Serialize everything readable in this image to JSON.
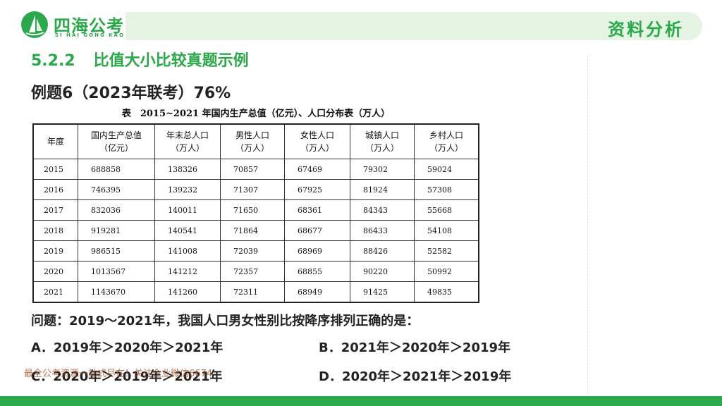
{
  "brand": {
    "name_cn": "四海公考",
    "name_en": "SI HAI GONG KAO"
  },
  "header": {
    "title": "资料分析"
  },
  "section": {
    "number": "5.2.2",
    "title": "比值大小比较真题示例"
  },
  "example": {
    "title": "例题6（2023年联考）76%"
  },
  "table": {
    "title": "表　2015~2021 年国内生产总值（亿元）、人口分布表（万人）",
    "headers": [
      {
        "line1": "年度",
        "line2": ""
      },
      {
        "line1": "国内生产总值",
        "line2": "（亿元）"
      },
      {
        "line1": "年末总人口",
        "line2": "（万人）"
      },
      {
        "line1": "男性人口",
        "line2": "（万人）"
      },
      {
        "line1": "女性人口",
        "line2": "（万人）"
      },
      {
        "line1": "城镇人口",
        "line2": "（万人）"
      },
      {
        "line1": "乡村人口",
        "line2": "（万人）"
      }
    ],
    "rows": [
      [
        "2015",
        "688858",
        "138326",
        "70857",
        "67469",
        "79302",
        "59024"
      ],
      [
        "2016",
        "746395",
        "139232",
        "71307",
        "67925",
        "81924",
        "57308"
      ],
      [
        "2017",
        "832036",
        "140011",
        "71650",
        "68361",
        "84343",
        "55668"
      ],
      [
        "2018",
        "919281",
        "140541",
        "71864",
        "68677",
        "86433",
        "54108"
      ],
      [
        "2019",
        "986515",
        "141008",
        "72039",
        "68969",
        "88426",
        "52582"
      ],
      [
        "2020",
        "1013567",
        "141212",
        "72357",
        "68855",
        "90220",
        "50992"
      ],
      [
        "2021",
        "1143670",
        "141260",
        "72311",
        "68949",
        "91425",
        "49835"
      ]
    ]
  },
  "question": {
    "text": "问题：2019～2021年，我国人口男女性别比按降序排列正确的是："
  },
  "options": {
    "A": "A．2019年＞2020年＞2021年",
    "B": "B．2021年＞2020年＞2019年",
    "C": "C．2020年＞2019年＞2021年",
    "D": "D．2020年＞2021年＞2019年"
  },
  "watermark": {
    "text": "最全公考资源一站式尽在！关注企业微信6674"
  },
  "colors": {
    "brand_green": "#2aa84a",
    "header_bg": "#e6f4e3"
  }
}
